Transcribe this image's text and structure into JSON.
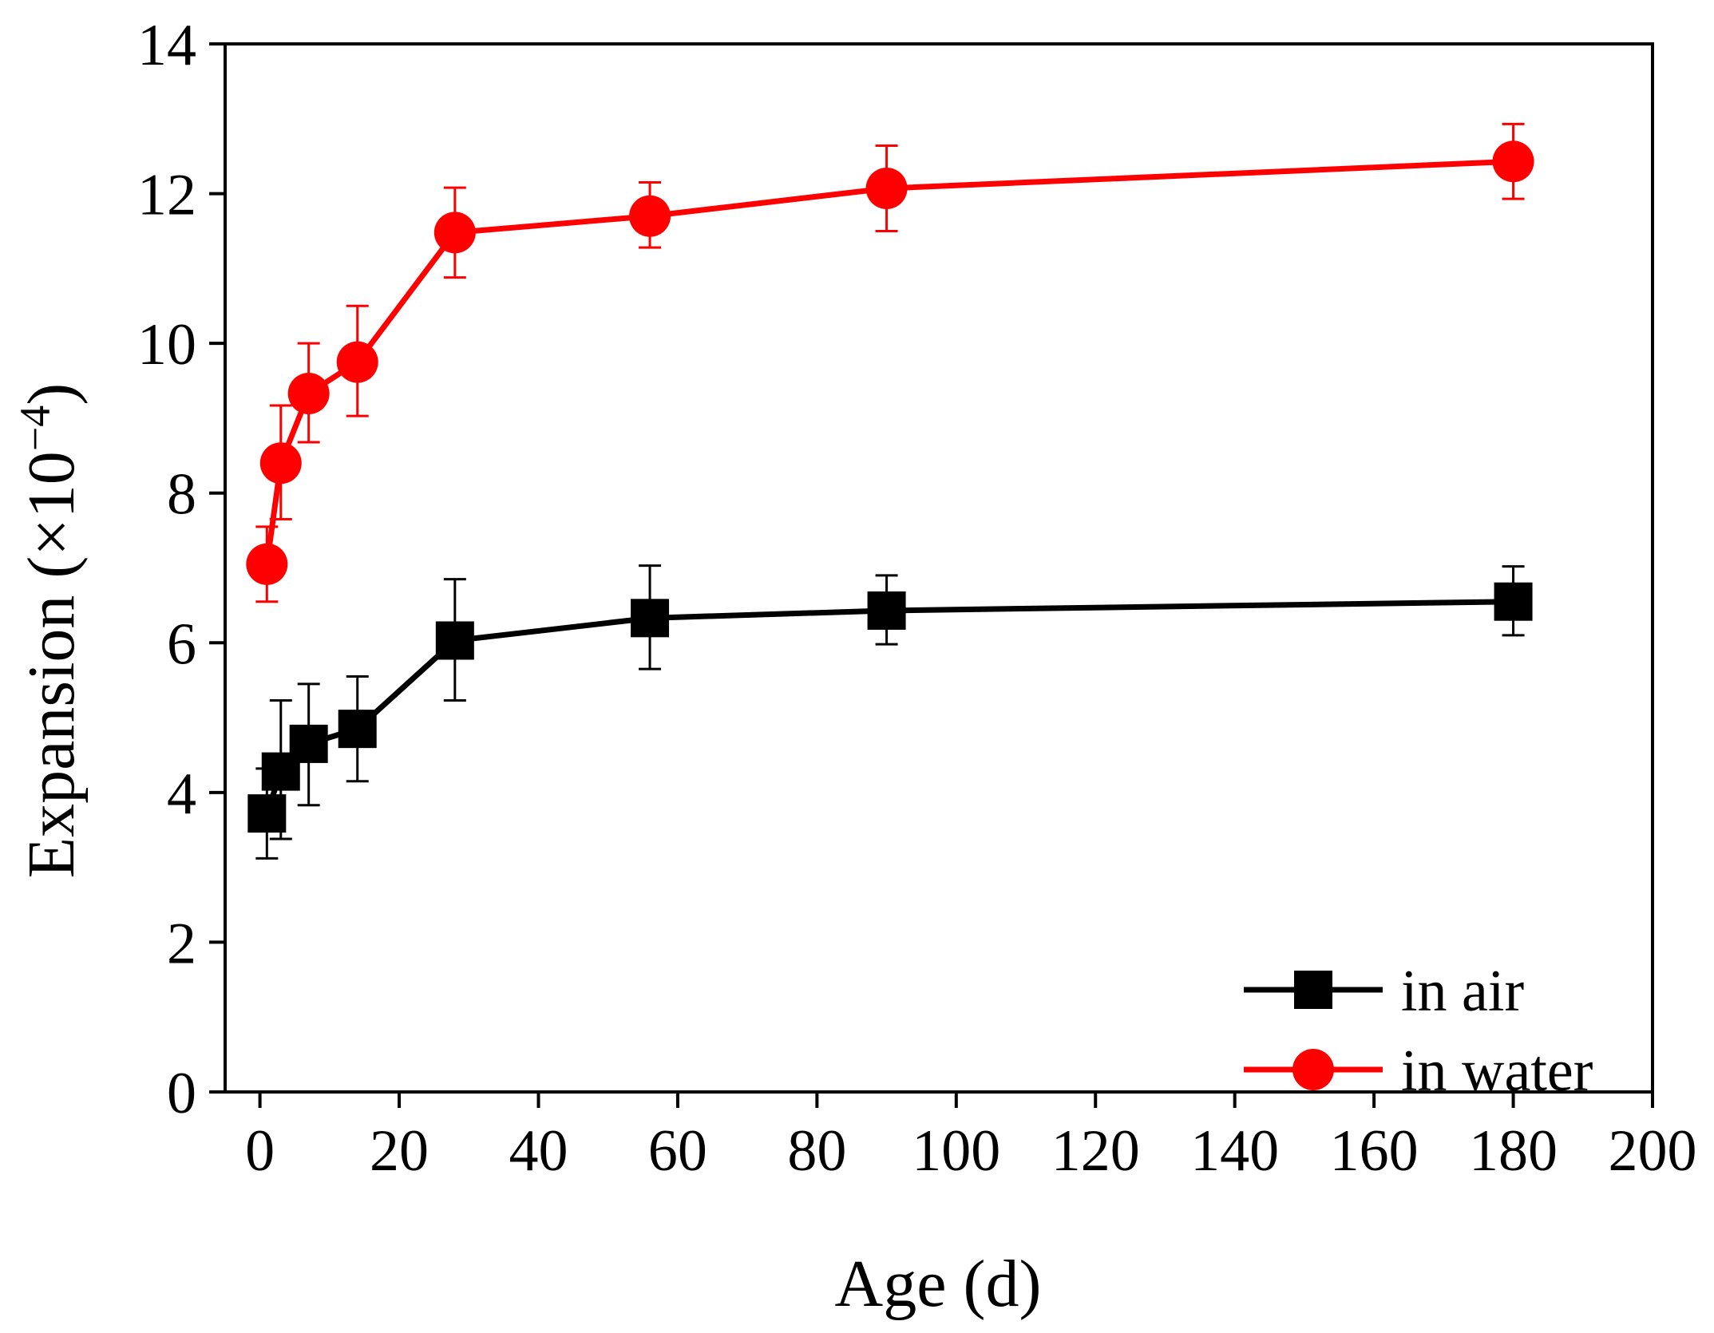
{
  "chart_data": {
    "type": "line",
    "title": "",
    "xlabel": "Age (d)",
    "ylabel_main": "Expansion (×10",
    "ylabel_sup": "−4",
    "ylabel_close": ")",
    "xlim": [
      -5,
      200
    ],
    "ylim": [
      0,
      14
    ],
    "xticks": [
      0,
      20,
      40,
      60,
      80,
      100,
      120,
      140,
      160,
      180,
      200
    ],
    "yticks": [
      0,
      2,
      4,
      6,
      8,
      10,
      12,
      14
    ],
    "legend_position": "bottom-right",
    "series": [
      {
        "name": "in air",
        "color": "#000000",
        "marker": "square",
        "x": [
          1,
          3,
          7,
          14,
          28,
          56,
          90,
          180
        ],
        "y": [
          3.72,
          4.28,
          4.65,
          4.85,
          6.03,
          6.33,
          6.43,
          6.55
        ],
        "err_low": [
          0.6,
          0.9,
          0.82,
          0.7,
          0.8,
          0.68,
          0.45,
          0.45
        ],
        "err_high": [
          0.6,
          0.95,
          0.8,
          0.7,
          0.82,
          0.7,
          0.47,
          0.47
        ]
      },
      {
        "name": "in water",
        "color": "#ff0000",
        "marker": "circle",
        "x": [
          1,
          3,
          7,
          14,
          28,
          56,
          90,
          180
        ],
        "y": [
          7.05,
          8.4,
          9.33,
          9.75,
          11.48,
          11.7,
          12.07,
          12.43
        ],
        "err_low": [
          0.5,
          0.75,
          0.65,
          0.72,
          0.6,
          0.42,
          0.57,
          0.5
        ],
        "err_high": [
          0.5,
          0.77,
          0.67,
          0.75,
          0.6,
          0.45,
          0.57,
          0.5
        ]
      }
    ]
  }
}
